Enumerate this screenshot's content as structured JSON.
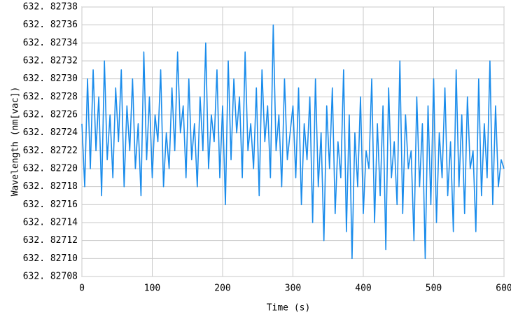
{
  "chart_data": {
    "type": "line",
    "x_label": "Time (s)",
    "y_label": "Wavelength (nm[vac])",
    "xlim": [
      0,
      600
    ],
    "xticks": [
      0,
      100,
      200,
      300,
      400,
      500,
      600
    ],
    "ylim": [
      632.82708,
      632.82738
    ],
    "yticks": [
      {
        "value": 632.82708,
        "label": "632. 82708"
      },
      {
        "value": 632.8271,
        "label": "632. 82710"
      },
      {
        "value": 632.82712,
        "label": "632. 82712"
      },
      {
        "value": 632.82714,
        "label": "632. 82714"
      },
      {
        "value": 632.82716,
        "label": "632. 82716"
      },
      {
        "value": 632.82718,
        "label": "632. 82718"
      },
      {
        "value": 632.8272,
        "label": "632. 82720"
      },
      {
        "value": 632.82722,
        "label": "632. 82722"
      },
      {
        "value": 632.82724,
        "label": "632. 82724"
      },
      {
        "value": 632.82726,
        "label": "632. 82726"
      },
      {
        "value": 632.82728,
        "label": "632. 82728"
      },
      {
        "value": 632.8273,
        "label": "632. 82730"
      },
      {
        "value": 632.82732,
        "label": "632. 82732"
      },
      {
        "value": 632.82734,
        "label": "632. 82734"
      },
      {
        "value": 632.82736,
        "label": "632. 82736"
      },
      {
        "value": 632.82738,
        "label": "632. 82738"
      }
    ],
    "grid": true,
    "color": "#1a8ceb",
    "x": [
      0,
      4,
      8,
      12,
      16,
      20,
      24,
      28,
      32,
      36,
      40,
      44,
      48,
      52,
      56,
      60,
      64,
      68,
      72,
      76,
      80,
      84,
      88,
      92,
      96,
      100,
      104,
      108,
      112,
      116,
      120,
      124,
      128,
      132,
      136,
      140,
      144,
      148,
      152,
      156,
      160,
      164,
      168,
      172,
      176,
      180,
      184,
      188,
      192,
      196,
      200,
      204,
      208,
      212,
      216,
      220,
      224,
      228,
      232,
      236,
      240,
      244,
      248,
      252,
      256,
      260,
      264,
      268,
      272,
      276,
      280,
      284,
      288,
      292,
      296,
      300,
      304,
      308,
      312,
      316,
      320,
      324,
      328,
      332,
      336,
      340,
      344,
      348,
      352,
      356,
      360,
      364,
      368,
      372,
      376,
      380,
      384,
      388,
      392,
      396,
      400,
      404,
      408,
      412,
      416,
      420,
      424,
      428,
      432,
      436,
      440,
      444,
      448,
      452,
      456,
      460,
      464,
      468,
      472,
      476,
      480,
      484,
      488,
      492,
      496,
      500,
      504,
      508,
      512,
      516,
      520,
      524,
      528,
      532,
      536,
      540,
      544,
      548,
      552,
      556,
      560,
      564,
      568,
      572,
      576,
      580,
      584,
      588,
      592,
      596,
      600
    ],
    "values": [
      632.82725,
      632.82718,
      632.8273,
      632.8272,
      632.82731,
      632.82722,
      632.82728,
      632.82717,
      632.82732,
      632.82721,
      632.82726,
      632.82719,
      632.82729,
      632.82723,
      632.82731,
      632.82718,
      632.82727,
      632.82722,
      632.8273,
      632.8272,
      632.82725,
      632.82717,
      632.82733,
      632.82721,
      632.82728,
      632.82719,
      632.82726,
      632.82723,
      632.82731,
      632.82718,
      632.82724,
      632.8272,
      632.82729,
      632.82722,
      632.82733,
      632.82724,
      632.82727,
      632.82719,
      632.8273,
      632.82721,
      632.82725,
      632.82718,
      632.82728,
      632.82722,
      632.82734,
      632.8272,
      632.82726,
      632.82723,
      632.82731,
      632.82719,
      632.82727,
      632.82716,
      632.82732,
      632.82721,
      632.8273,
      632.82724,
      632.82728,
      632.82719,
      632.82733,
      632.82722,
      632.82725,
      632.8272,
      632.82729,
      632.82717,
      632.82731,
      632.82723,
      632.82727,
      632.82719,
      632.82736,
      632.82722,
      632.82726,
      632.82718,
      632.8273,
      632.82721,
      632.82724,
      632.82727,
      632.82719,
      632.82729,
      632.82716,
      632.82725,
      632.82721,
      632.82728,
      632.82714,
      632.8273,
      632.82718,
      632.82724,
      632.82712,
      632.82727,
      632.8272,
      632.82729,
      632.82715,
      632.82723,
      632.82719,
      632.82731,
      632.82713,
      632.82726,
      632.8271,
      632.82724,
      632.82718,
      632.82728,
      632.82715,
      632.82722,
      632.8272,
      632.8273,
      632.82714,
      632.82725,
      632.82717,
      632.82727,
      632.82711,
      632.82729,
      632.82719,
      632.82723,
      632.82716,
      632.82732,
      632.82715,
      632.82726,
      632.8272,
      632.82722,
      632.82712,
      632.82728,
      632.82718,
      632.82725,
      632.8271,
      632.82727,
      632.82716,
      632.8273,
      632.82714,
      632.82724,
      632.82719,
      632.82729,
      632.82717,
      632.82723,
      632.82713,
      632.82731,
      632.82718,
      632.82726,
      632.82715,
      632.82728,
      632.8272,
      632.82722,
      632.82713,
      632.8273,
      632.82717,
      632.82725,
      632.82719,
      632.82732,
      632.82716,
      632.82727,
      632.82718,
      632.82721,
      632.8272
    ]
  }
}
